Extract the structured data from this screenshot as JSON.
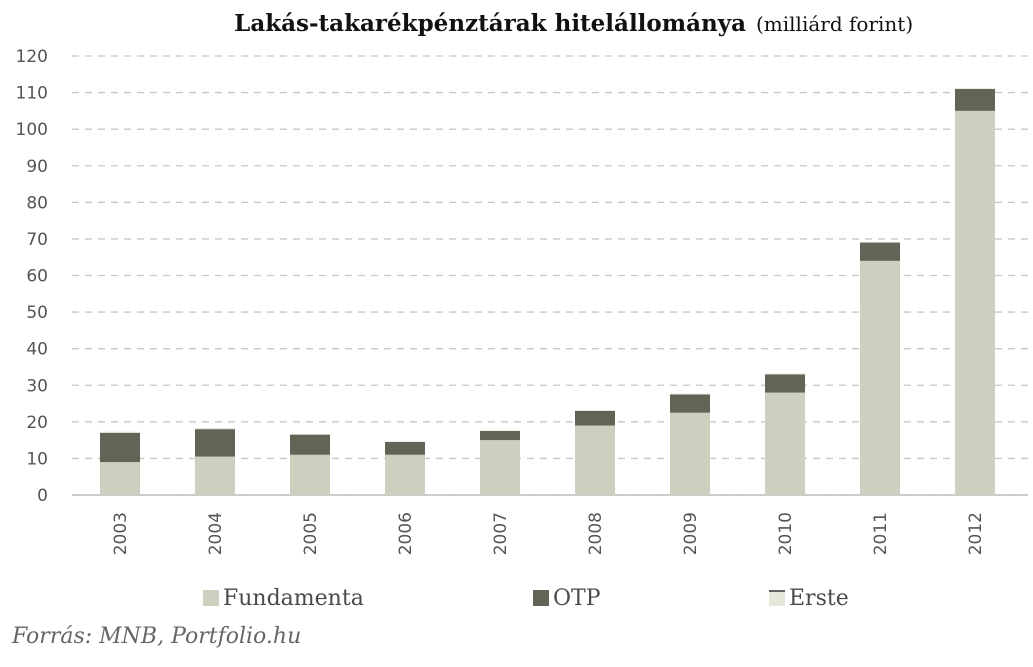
{
  "chart_data": {
    "type": "bar",
    "stacked": true,
    "title": "Lakás-takarékpénztárak hitelállománya",
    "subtitle": "(milliárd forint)",
    "categories": [
      "2003",
      "2004",
      "2005",
      "2006",
      "2007",
      "2008",
      "2009",
      "2010",
      "2011",
      "2012"
    ],
    "series": [
      {
        "name": "Fundamenta",
        "color": "#cfcfc0",
        "values": [
          9,
          10.5,
          11,
          11,
          15,
          19,
          22.5,
          28,
          64,
          105
        ]
      },
      {
        "name": "OTP",
        "color": "#646456",
        "values": [
          8,
          7.5,
          5.5,
          3.5,
          2.5,
          4,
          5,
          5,
          5,
          6
        ]
      },
      {
        "name": "Erste",
        "color": "#e7e7dc",
        "values": [
          0.3,
          0.3,
          0.2,
          0.2,
          0.2,
          0.2,
          0.2,
          0.2,
          0.2,
          0.2
        ]
      }
    ],
    "ylim": [
      0,
      120
    ],
    "yticks": [
      0,
      10,
      20,
      30,
      40,
      50,
      60,
      70,
      80,
      90,
      100,
      110,
      120
    ],
    "grid": true,
    "legend": "bottom",
    "xlabel": "",
    "ylabel": ""
  },
  "source": "Forrás: MNB, Portfolio.hu"
}
